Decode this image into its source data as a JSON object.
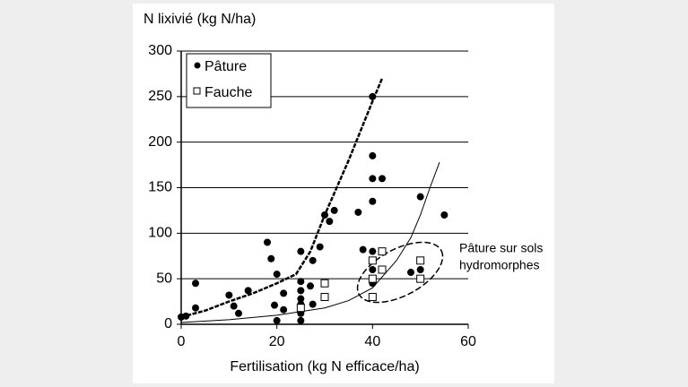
{
  "chart_data": {
    "type": "scatter",
    "title": "N lixivié (kg N/ha)",
    "xlabel": "Fertilisation (kg N efficace/ha)",
    "xlim": [
      0,
      60
    ],
    "xticks": [
      0,
      20,
      40,
      60
    ],
    "ylim": [
      0,
      300
    ],
    "yticks": [
      0,
      50,
      100,
      150,
      200,
      250,
      300
    ],
    "grid": true,
    "legend": "upper left",
    "series": [
      {
        "name": "Pâture",
        "marker": "circle",
        "color": "#000000",
        "x": [
          0,
          1,
          3,
          3,
          10,
          11,
          12,
          14,
          18,
          18.8,
          20,
          19.5,
          20,
          21.4,
          21.4,
          25,
          25,
          25,
          25,
          25,
          25,
          25,
          27,
          27.5,
          27.5,
          29,
          30,
          31,
          32,
          37,
          38,
          40,
          40,
          40,
          40,
          42,
          40,
          40,
          40,
          48,
          50,
          50,
          55
        ],
        "y": [
          8,
          9,
          45,
          18,
          32,
          20,
          12,
          37,
          90,
          72,
          55,
          21,
          4,
          16,
          34,
          80,
          47,
          37,
          28,
          22,
          12,
          4,
          42,
          70,
          22,
          85,
          120,
          113,
          125,
          123,
          82,
          250,
          185,
          160,
          135,
          160,
          80,
          60,
          45,
          57,
          60,
          140,
          120
        ]
      },
      {
        "name": "Fauche",
        "marker": "square",
        "color": "#ffffff",
        "x": [
          25,
          30,
          30,
          40,
          40,
          40,
          42,
          42,
          50,
          50
        ],
        "y": [
          18,
          45,
          30,
          70,
          50,
          30,
          80,
          60,
          70,
          50
        ]
      }
    ],
    "curves": [
      {
        "style": "dashed",
        "x": [
          0,
          5,
          10,
          15,
          20,
          24,
          27,
          30,
          35,
          40,
          42
        ],
        "y": [
          8,
          15,
          25,
          34,
          45,
          55,
          80,
          120,
          180,
          245,
          270
        ]
      },
      {
        "style": "solid",
        "x": [
          0,
          10,
          20,
          30,
          35,
          40,
          45,
          48,
          50,
          52,
          54
        ],
        "y": [
          2,
          5,
          10,
          18,
          26,
          40,
          70,
          95,
          120,
          150,
          178
        ]
      }
    ],
    "annotation": [
      "Pâture sur sols",
      "hydromorphes"
    ]
  }
}
